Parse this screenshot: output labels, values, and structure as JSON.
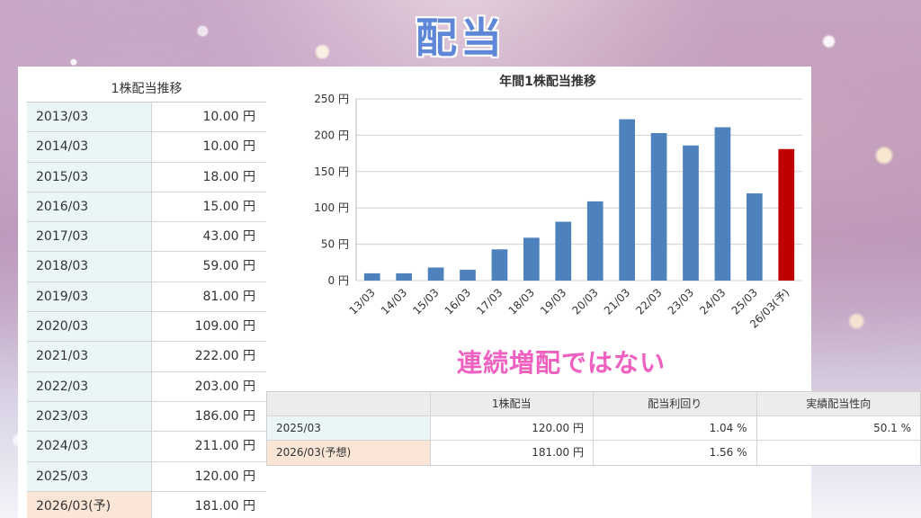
{
  "headline": "配当",
  "left_table": {
    "title": "1株配当推移",
    "rows": [
      {
        "date": "2013/03",
        "value": "10.00 円"
      },
      {
        "date": "2014/03",
        "value": "10.00 円"
      },
      {
        "date": "2015/03",
        "value": "18.00 円"
      },
      {
        "date": "2016/03",
        "value": "15.00 円"
      },
      {
        "date": "2017/03",
        "value": "43.00 円"
      },
      {
        "date": "2018/03",
        "value": "59.00 円"
      },
      {
        "date": "2019/03",
        "value": "81.00 円"
      },
      {
        "date": "2020/03",
        "value": "109.00 円"
      },
      {
        "date": "2021/03",
        "value": "222.00 円"
      },
      {
        "date": "2022/03",
        "value": "203.00 円"
      },
      {
        "date": "2023/03",
        "value": "186.00 円"
      },
      {
        "date": "2024/03",
        "value": "211.00 円"
      },
      {
        "date": "2025/03",
        "value": "120.00 円"
      },
      {
        "date": "2026/03(予)",
        "value": "181.00 円"
      }
    ]
  },
  "chart_data": {
    "type": "bar",
    "title": "年間1株配当推移",
    "categories": [
      "13/03",
      "14/03",
      "15/03",
      "16/03",
      "17/03",
      "18/03",
      "19/03",
      "20/03",
      "21/03",
      "22/03",
      "23/03",
      "24/03",
      "25/03",
      "26/03(予)"
    ],
    "values": [
      10,
      10,
      18,
      15,
      43,
      59,
      81,
      109,
      222,
      203,
      186,
      211,
      120,
      181
    ],
    "yticks": [
      "0 円",
      "50 円",
      "100 円",
      "150 円",
      "200 円",
      "250 円"
    ],
    "ylim": [
      0,
      250
    ],
    "grid": true,
    "colors": {
      "actual": "#4f81bd",
      "forecast": "#c00000"
    }
  },
  "note": "連続増配ではない",
  "bottom_table": {
    "headers": [
      "",
      "1株配当",
      "配当利回り",
      "実績配当性向"
    ],
    "rows": [
      {
        "label": "2025/03",
        "dividend": "120.00 円",
        "yield": "1.04 %",
        "payout": "50.1 %"
      },
      {
        "label": "2026/03(予想)",
        "dividend": "181.00 円",
        "yield": "1.56 %",
        "payout": ""
      }
    ]
  }
}
